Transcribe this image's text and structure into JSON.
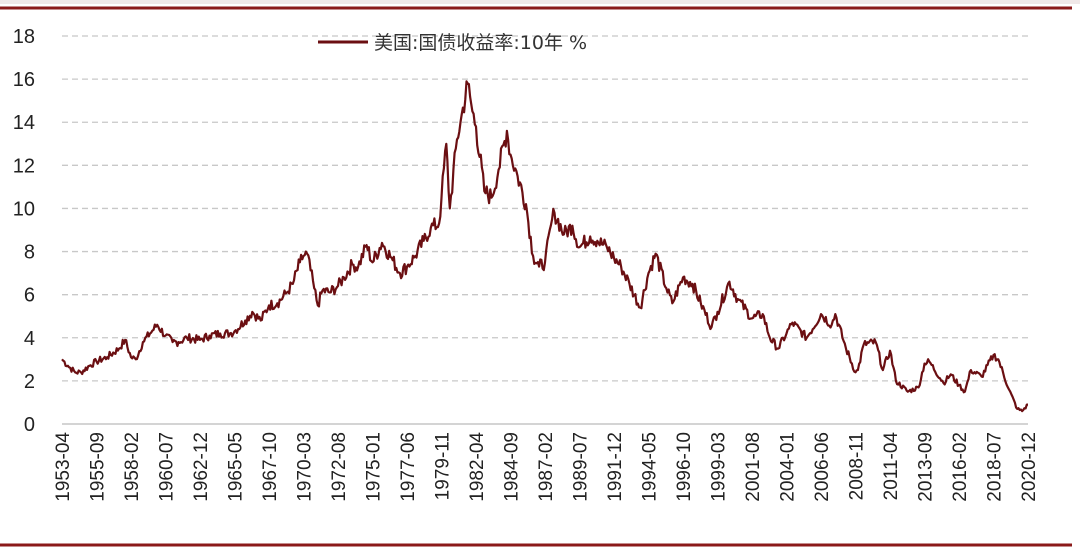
{
  "chart_data": {
    "type": "line",
    "title": "",
    "xlabel": "",
    "ylabel": "",
    "ylim": [
      0,
      18
    ],
    "y_ticks": [
      0,
      2,
      4,
      6,
      8,
      10,
      12,
      14,
      16,
      18
    ],
    "grid": "horizontal-dashed",
    "legend_position": "top-center",
    "line_color": "#6b0f12",
    "frame_color": "#8b1a1a",
    "x_ticks": [
      "1953-04",
      "1955-09",
      "1958-02",
      "1960-07",
      "1962-12",
      "1965-05",
      "1967-10",
      "1970-03",
      "1972-08",
      "1975-01",
      "1977-06",
      "1979-11",
      "1982-04",
      "1984-09",
      "1987-02",
      "1989-07",
      "1991-12",
      "1994-05",
      "1996-10",
      "1999-03",
      "2001-08",
      "2004-01",
      "2006-06",
      "2008-11",
      "2011-04",
      "2013-09",
      "2016-02",
      "2018-07",
      "2020-12"
    ],
    "series": [
      {
        "name": "美国:国债收益率:10年 %",
        "x": [
          "1953-04",
          "1953-09",
          "1954-03",
          "1954-08",
          "1955-03",
          "1955-09",
          "1956-06",
          "1957-04",
          "1957-09",
          "1958-02",
          "1958-06",
          "1958-12",
          "1959-06",
          "1959-12",
          "1960-07",
          "1961-01",
          "1961-06",
          "1962-01",
          "1962-12",
          "1963-08",
          "1964-05",
          "1965-01",
          "1965-05",
          "1966-02",
          "1966-08",
          "1967-03",
          "1967-10",
          "1968-05",
          "1969-01",
          "1969-06",
          "1969-12",
          "1970-03",
          "1970-06",
          "1970-12",
          "1971-03",
          "1971-07",
          "1972-01",
          "1972-08",
          "1973-01",
          "1973-08",
          "1974-01",
          "1974-08",
          "1975-01",
          "1975-09",
          "1976-06",
          "1976-12",
          "1977-06",
          "1978-01",
          "1978-08",
          "1979-02",
          "1979-09",
          "1979-11",
          "1980-03",
          "1980-06",
          "1980-12",
          "1981-03",
          "1981-09",
          "1982-01",
          "1982-04",
          "1982-11",
          "1983-05",
          "1983-11",
          "1984-06",
          "1984-09",
          "1985-03",
          "1985-10",
          "1986-04",
          "1986-09",
          "1987-02",
          "1987-08",
          "1987-10",
          "1988-06",
          "1989-01",
          "1989-07",
          "1990-04",
          "1990-10",
          "1991-06",
          "1991-12",
          "1992-06",
          "1993-01",
          "1993-10",
          "1994-05",
          "1994-11",
          "1995-08",
          "1996-01",
          "1996-10",
          "1997-06",
          "1998-01",
          "1998-10",
          "1999-03",
          "2000-01",
          "2000-08",
          "2001-08",
          "2002-05",
          "2002-11",
          "2003-06",
          "2004-01",
          "2004-06",
          "2005-06",
          "2006-06",
          "2007-03",
          "2007-06",
          "2008-03",
          "2008-11",
          "2009-01",
          "2009-06",
          "2010-04",
          "2010-10",
          "2011-04",
          "2011-09",
          "2012-07",
          "2013-04",
          "2013-09",
          "2014-01",
          "2015-01",
          "2015-07",
          "2016-02",
          "2016-07",
          "2016-12",
          "2017-09",
          "2018-07",
          "2018-11",
          "2019-08",
          "2020-03",
          "2020-07",
          "2020-12"
        ],
        "values": [
          3.0,
          2.7,
          2.4,
          2.4,
          2.7,
          2.9,
          3.1,
          3.5,
          3.9,
          3.1,
          3.0,
          3.8,
          4.2,
          4.6,
          4.1,
          3.8,
          3.8,
          4.0,
          3.9,
          4.1,
          4.2,
          4.2,
          4.3,
          4.8,
          5.2,
          4.8,
          5.5,
          5.6,
          6.1,
          6.5,
          7.5,
          7.8,
          7.9,
          6.3,
          5.5,
          6.2,
          6.1,
          6.4,
          6.8,
          7.4,
          7.3,
          8.3,
          7.5,
          8.4,
          7.6,
          7.0,
          7.3,
          7.8,
          8.5,
          9.1,
          9.3,
          10.5,
          13.0,
          10.0,
          13.2,
          14.0,
          15.8,
          14.5,
          13.8,
          10.8,
          10.5,
          11.8,
          13.6,
          12.5,
          11.5,
          10.2,
          7.8,
          7.3,
          7.5,
          9.5,
          9.8,
          8.8,
          9.2,
          8.2,
          8.7,
          8.5,
          8.2,
          7.7,
          7.3,
          6.5,
          5.4,
          7.0,
          7.9,
          6.3,
          5.6,
          6.8,
          6.5,
          5.6,
          4.5,
          5.2,
          6.6,
          5.8,
          4.9,
          5.1,
          4.0,
          3.5,
          4.2,
          4.7,
          4.0,
          5.1,
          4.6,
          5.1,
          3.5,
          2.4,
          2.5,
          3.7,
          3.8,
          2.5,
          3.4,
          2.0,
          1.5,
          1.7,
          2.8,
          2.9,
          1.9,
          2.3,
          1.8,
          1.5,
          2.5,
          2.2,
          3.2,
          3.0,
          1.6,
          0.7,
          0.6,
          0.9
        ]
      }
    ]
  }
}
